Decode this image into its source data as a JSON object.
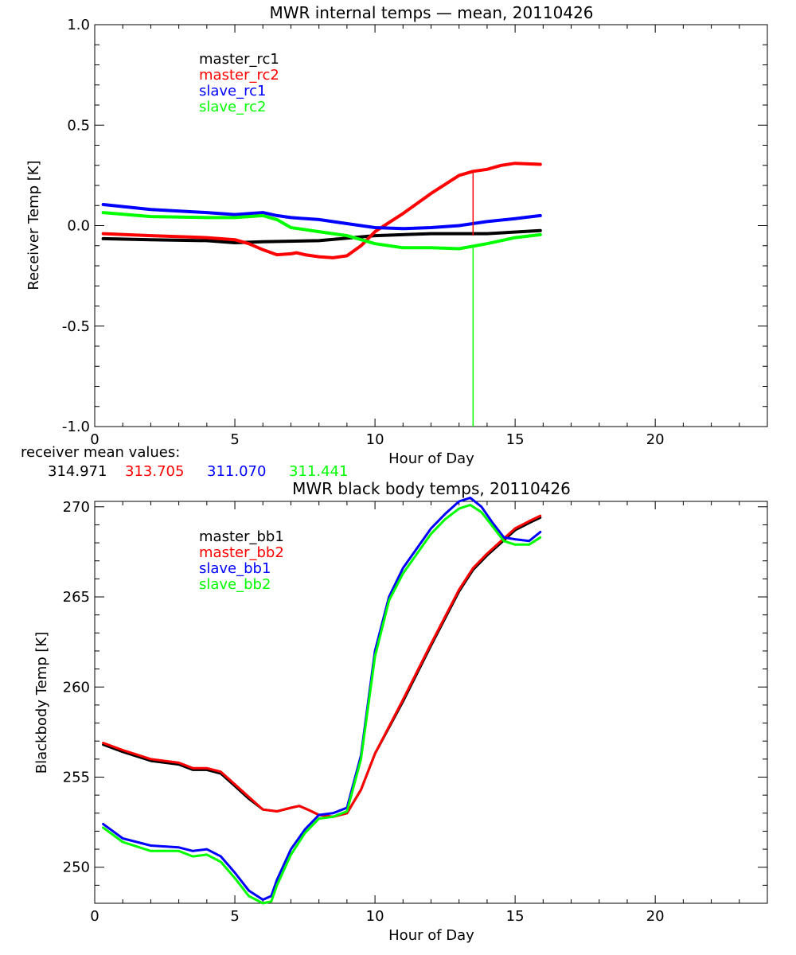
{
  "chart_data": [
    {
      "type": "line",
      "title": "MWR internal temps — mean, 20110426",
      "xlabel": "Hour of Day",
      "ylabel": "Receiver Temp [K]",
      "xlim": [
        0,
        24
      ],
      "ylim": [
        -1.0,
        1.0
      ],
      "xticks": [
        0,
        5,
        10,
        15,
        20
      ],
      "yticks": [
        -1.0,
        -0.5,
        0.0,
        0.5,
        1.0
      ],
      "ytick_labels": [
        "-1.0",
        "-0.5",
        "0.0",
        "0.5",
        "1.0"
      ],
      "grid": false,
      "legend_position": "top-left",
      "series": [
        {
          "name": "master_rc1",
          "color": "#000000",
          "x": [
            0.3,
            2,
            4,
            5,
            6,
            8,
            10,
            12,
            14,
            15.9
          ],
          "y": [
            -0.065,
            -0.07,
            -0.075,
            -0.085,
            -0.08,
            -0.075,
            -0.05,
            -0.04,
            -0.04,
            -0.025
          ]
        },
        {
          "name": "master_rc2",
          "color": "#ff0000",
          "x": [
            0.3,
            2,
            4,
            5,
            5.5,
            6,
            6.5,
            7,
            7.2,
            7.5,
            8,
            8.5,
            9,
            9.5,
            10,
            11,
            12,
            13,
            13.5,
            14,
            14.5,
            15,
            15.9
          ],
          "y": [
            -0.04,
            -0.05,
            -0.06,
            -0.07,
            -0.09,
            -0.12,
            -0.145,
            -0.14,
            -0.135,
            -0.145,
            -0.155,
            -0.16,
            -0.15,
            -0.1,
            -0.03,
            0.06,
            0.16,
            0.25,
            0.27,
            0.28,
            0.3,
            0.31,
            0.305
          ]
        },
        {
          "name": "slave_rc1",
          "color": "#0000ff",
          "x": [
            0.3,
            2,
            4,
            5,
            6,
            6.5,
            7,
            8,
            9,
            10,
            11,
            12,
            13,
            14,
            15,
            15.9
          ],
          "y": [
            0.105,
            0.08,
            0.065,
            0.055,
            0.065,
            0.05,
            0.04,
            0.03,
            0.01,
            -0.01,
            -0.015,
            -0.01,
            0.0,
            0.02,
            0.035,
            0.05
          ]
        },
        {
          "name": "slave_rc2",
          "color": "#00ff00",
          "x": [
            0.3,
            2,
            4,
            5,
            6,
            6.5,
            7,
            8,
            9,
            10,
            11,
            12,
            13,
            14,
            15,
            15.9
          ],
          "y": [
            0.065,
            0.045,
            0.04,
            0.04,
            0.05,
            0.03,
            -0.01,
            -0.03,
            -0.05,
            -0.09,
            -0.11,
            -0.11,
            -0.115,
            -0.09,
            -0.06,
            -0.045
          ]
        }
      ],
      "annotations": [
        {
          "type": "spike",
          "series": "master_rc2",
          "x": 13.5,
          "y_from": 0.27,
          "y_to": -0.05
        },
        {
          "type": "spike",
          "series": "slave_rc2",
          "x": 13.5,
          "y_from": -0.11,
          "y_to": -1.0
        }
      ]
    },
    {
      "type": "line",
      "title": "MWR black body temps, 20110426",
      "xlabel": "Hour of Day",
      "ylabel": "Blackbody Temp [K]",
      "xlim": [
        0,
        24
      ],
      "ylim": [
        248,
        270.3
      ],
      "xticks": [
        0,
        5,
        10,
        15,
        20
      ],
      "yticks": [
        250,
        255,
        260,
        265,
        270
      ],
      "ytick_labels": [
        "250",
        "255",
        "260",
        "265",
        "270"
      ],
      "grid": false,
      "legend_position": "top-left",
      "series": [
        {
          "name": "master_bb1",
          "color": "#000000",
          "x": [
            0.3,
            1,
            2,
            3,
            3.5,
            4,
            4.5,
            5,
            5.5,
            6,
            6.5,
            7,
            7.3,
            7.6,
            8,
            8.5,
            9,
            9.5,
            10,
            11,
            12,
            13,
            13.5,
            14,
            14.5,
            15,
            15.5,
            15.9
          ],
          "y": [
            256.8,
            256.4,
            255.9,
            255.7,
            255.4,
            255.4,
            255.2,
            254.5,
            253.8,
            253.2,
            253.1,
            253.3,
            253.4,
            253.2,
            252.9,
            252.8,
            253.0,
            254.3,
            256.3,
            259.2,
            262.3,
            265.3,
            266.5,
            267.3,
            268.0,
            268.7,
            269.1,
            269.4
          ]
        },
        {
          "name": "master_bb2",
          "color": "#ff0000",
          "x": [
            0.3,
            1,
            2,
            3,
            3.5,
            4,
            4.5,
            5,
            5.5,
            6,
            6.5,
            7,
            7.3,
            7.6,
            8,
            8.5,
            9,
            9.5,
            10,
            11,
            12,
            13,
            13.5,
            14,
            14.5,
            15,
            15.5,
            15.9
          ],
          "y": [
            256.9,
            256.5,
            256.0,
            255.8,
            255.5,
            255.5,
            255.3,
            254.6,
            253.9,
            253.2,
            253.1,
            253.3,
            253.4,
            253.2,
            252.9,
            252.8,
            253.0,
            254.3,
            256.3,
            259.3,
            262.4,
            265.4,
            266.6,
            267.4,
            268.1,
            268.8,
            269.2,
            269.5
          ]
        },
        {
          "name": "slave_bb1",
          "color": "#0000ff",
          "x": [
            0.3,
            1,
            2,
            3,
            3.5,
            4,
            4.5,
            5,
            5.5,
            6,
            6.3,
            6.5,
            7,
            7.5,
            8,
            8.5,
            9,
            9.5,
            10,
            10.5,
            11,
            12,
            12.5,
            13,
            13.4,
            13.8,
            14.2,
            14.6,
            15,
            15.5,
            15.9
          ],
          "y": [
            252.4,
            251.6,
            251.2,
            251.1,
            250.9,
            251.0,
            250.6,
            249.7,
            248.7,
            248.2,
            248.4,
            249.3,
            251.0,
            252.1,
            252.9,
            253.0,
            253.3,
            256.2,
            262.0,
            265.0,
            266.6,
            268.8,
            269.6,
            270.3,
            270.5,
            270.0,
            269.1,
            268.3,
            268.2,
            268.1,
            268.6
          ]
        },
        {
          "name": "slave_bb2",
          "color": "#00ff00",
          "x": [
            0.3,
            1,
            2,
            3,
            3.5,
            4,
            4.5,
            5,
            5.5,
            6,
            6.3,
            6.5,
            7,
            7.5,
            8,
            8.5,
            9,
            9.5,
            10,
            10.5,
            11,
            12,
            12.5,
            13,
            13.4,
            13.8,
            14.2,
            14.6,
            15,
            15.5,
            15.9
          ],
          "y": [
            252.2,
            251.4,
            250.9,
            250.9,
            250.6,
            250.7,
            250.3,
            249.4,
            248.4,
            248.0,
            248.1,
            249.0,
            250.7,
            251.9,
            252.7,
            252.8,
            253.1,
            256.0,
            261.7,
            264.8,
            266.3,
            268.5,
            269.3,
            269.9,
            270.1,
            269.7,
            268.9,
            268.1,
            267.9,
            267.9,
            268.3
          ]
        }
      ]
    }
  ],
  "mean_values": {
    "label": "receiver mean values:",
    "values": [
      {
        "text": "314.971",
        "color": "#000000"
      },
      {
        "text": "313.705",
        "color": "#ff0000"
      },
      {
        "text": "311.070",
        "color": "#0000ff"
      },
      {
        "text": "311.441",
        "color": "#00ff00"
      }
    ]
  }
}
